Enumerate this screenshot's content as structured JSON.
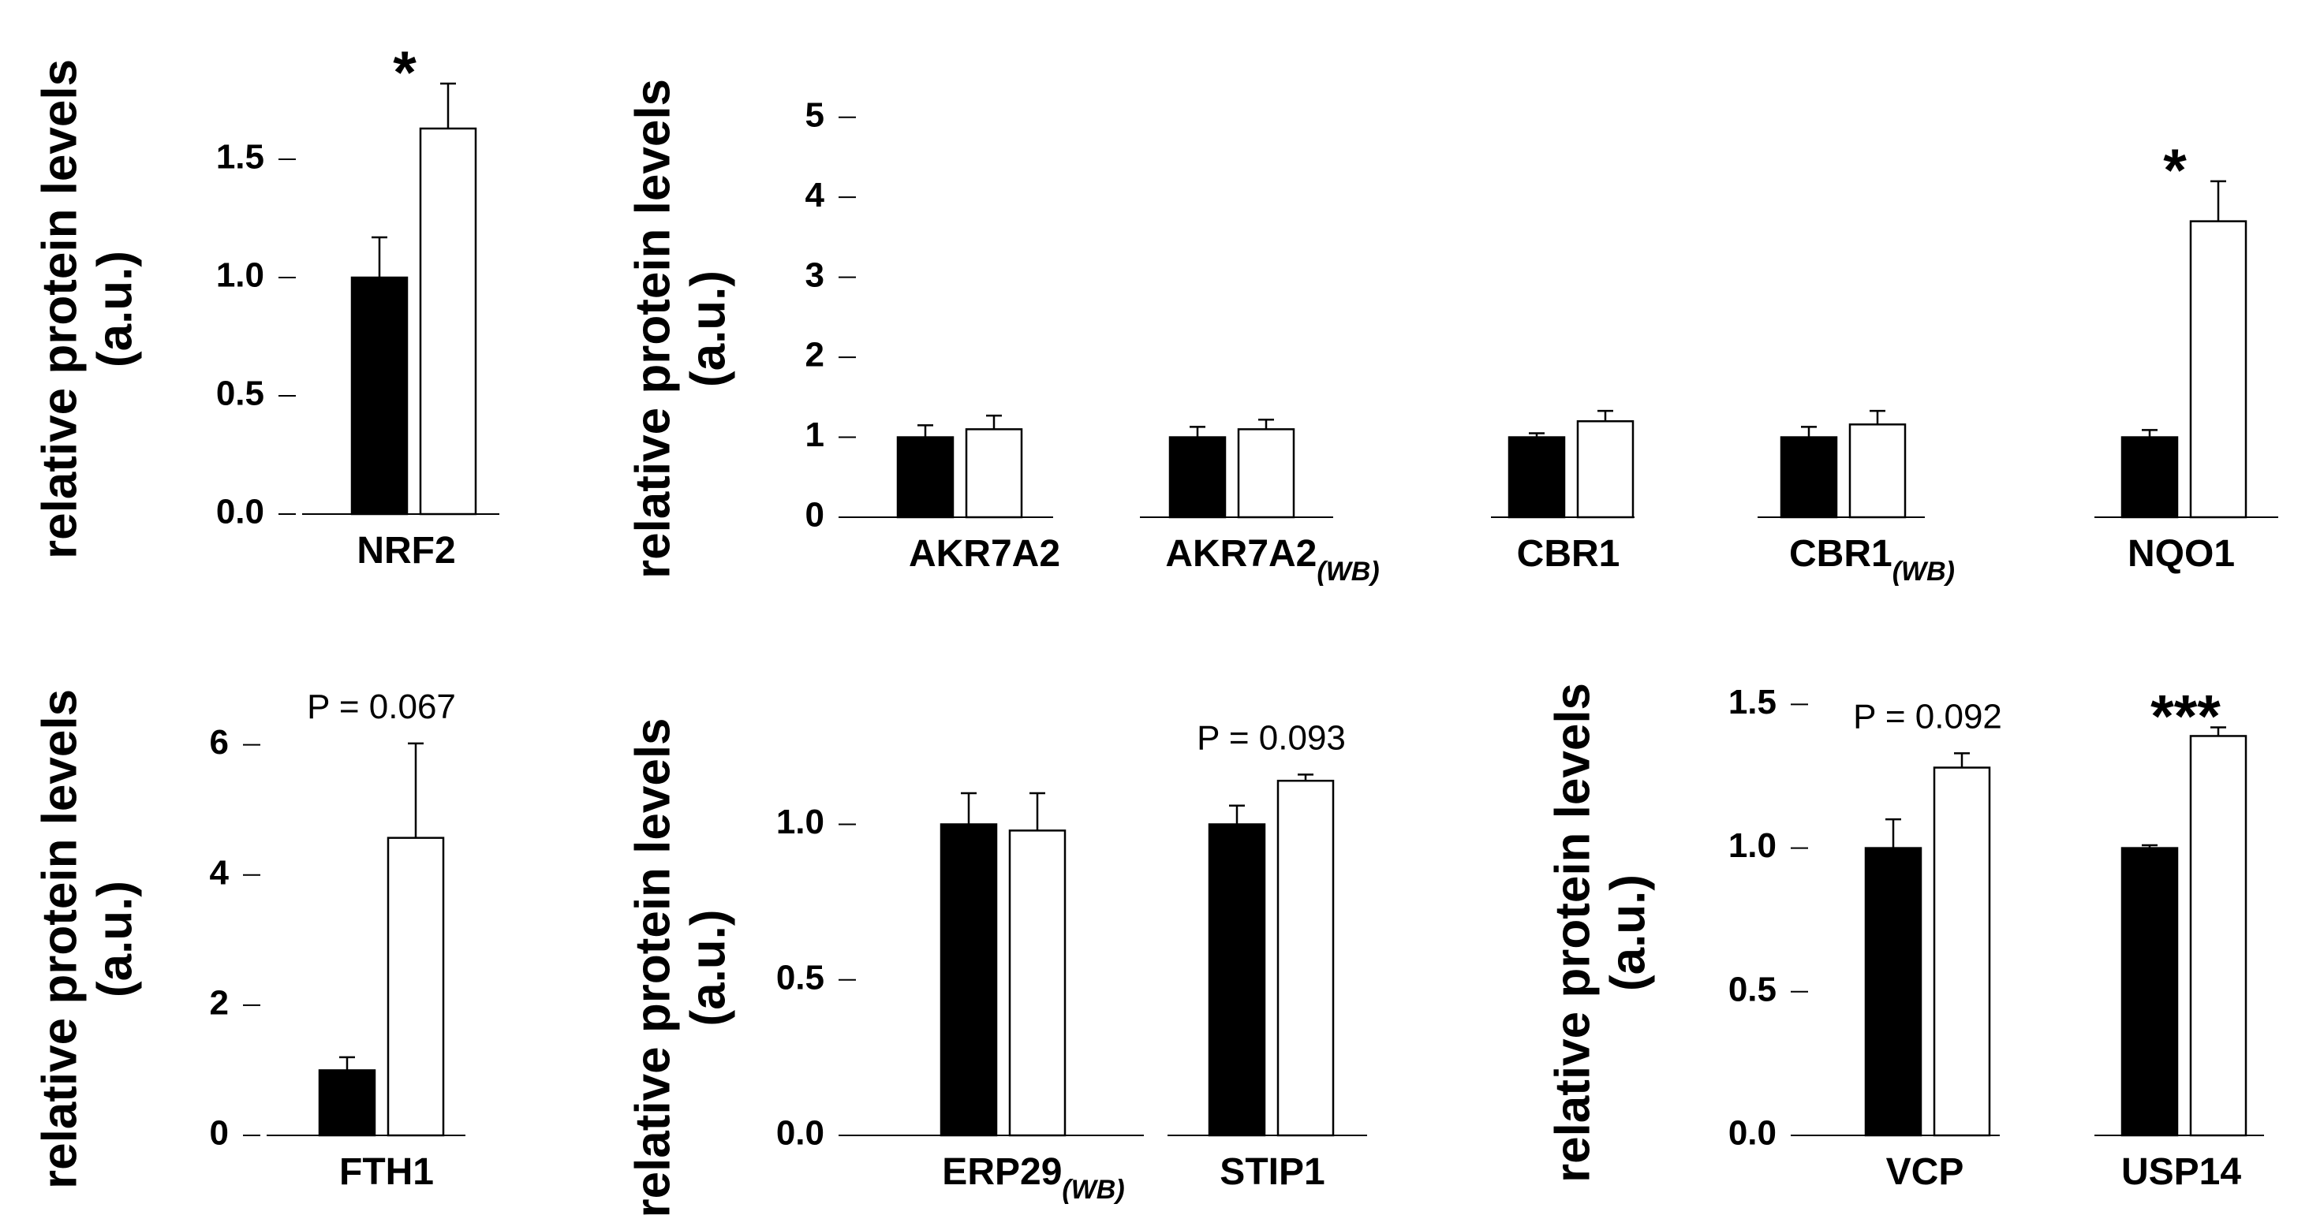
{
  "ylabel_line1": "relative protein levels",
  "ylabel_line2": "(a.u.)",
  "colors": {
    "control": "#000000",
    "treated": "#ffffff",
    "stroke": "#000000"
  },
  "chart_data": [
    {
      "type": "bar",
      "ylim": [
        0,
        2.0
      ],
      "yticks": [
        "0.0",
        "0.5",
        "1.0",
        "1.5"
      ],
      "groups": [
        {
          "label": "NRF2",
          "sub": "",
          "values": [
            1.0,
            1.63
          ],
          "errors": [
            0.17,
            0.19
          ],
          "annotation": "*"
        }
      ]
    },
    {
      "type": "bar",
      "ylim": [
        0,
        5.5
      ],
      "yticks": [
        "0",
        "1",
        "2",
        "3",
        "4",
        "5"
      ],
      "groups": [
        {
          "label": "AKR7A2",
          "sub": "",
          "values": [
            1.0,
            1.1
          ],
          "errors": [
            0.15,
            0.17
          ],
          "annotation": ""
        },
        {
          "label": "AKR7A2",
          "sub": "(WB)",
          "values": [
            1.0,
            1.1
          ],
          "errors": [
            0.13,
            0.12
          ],
          "annotation": ""
        },
        {
          "label": "CBR1",
          "sub": "",
          "values": [
            1.0,
            1.2
          ],
          "errors": [
            0.05,
            0.13
          ],
          "annotation": ""
        },
        {
          "label": "CBR1",
          "sub": "(WB)",
          "values": [
            1.0,
            1.16
          ],
          "errors": [
            0.13,
            0.17
          ],
          "annotation": ""
        },
        {
          "label": "NQO1",
          "sub": "",
          "values": [
            1.0,
            3.7
          ],
          "errors": [
            0.09,
            0.5
          ],
          "annotation": "*"
        }
      ]
    },
    {
      "type": "bar",
      "ylim": [
        0,
        7.0
      ],
      "yticks": [
        "0",
        "2",
        "4",
        "6"
      ],
      "groups": [
        {
          "label": "FTH1",
          "sub": "",
          "values": [
            1.0,
            4.57
          ],
          "errors": [
            0.2,
            1.45
          ],
          "annotation": "P = 0.067"
        }
      ]
    },
    {
      "type": "bar",
      "ylim": [
        0,
        1.28
      ],
      "yticks": [
        "0.0",
        "0.5",
        "1.0"
      ],
      "groups": [
        {
          "label": "ERP29",
          "sub": "(WB)",
          "values": [
            1.0,
            0.98
          ],
          "errors": [
            0.1,
            0.12
          ],
          "annotation": ""
        },
        {
          "label": "STIP1",
          "sub": "",
          "values": [
            1.0,
            1.14
          ],
          "errors": [
            0.06,
            0.02
          ],
          "annotation": "P = 0.093"
        }
      ]
    },
    {
      "type": "bar",
      "ylim": [
        0,
        1.63
      ],
      "yticks": [
        "0.0",
        "0.5",
        "1.0",
        "1.5"
      ],
      "groups": [
        {
          "label": "VCP",
          "sub": "",
          "values": [
            1.0,
            1.28
          ],
          "errors": [
            0.1,
            0.05
          ],
          "annotation": "P = 0.092"
        },
        {
          "label": "USP14",
          "sub": "",
          "values": [
            1.0,
            1.39
          ],
          "errors": [
            0.01,
            0.03
          ],
          "annotation": "***"
        }
      ]
    }
  ]
}
